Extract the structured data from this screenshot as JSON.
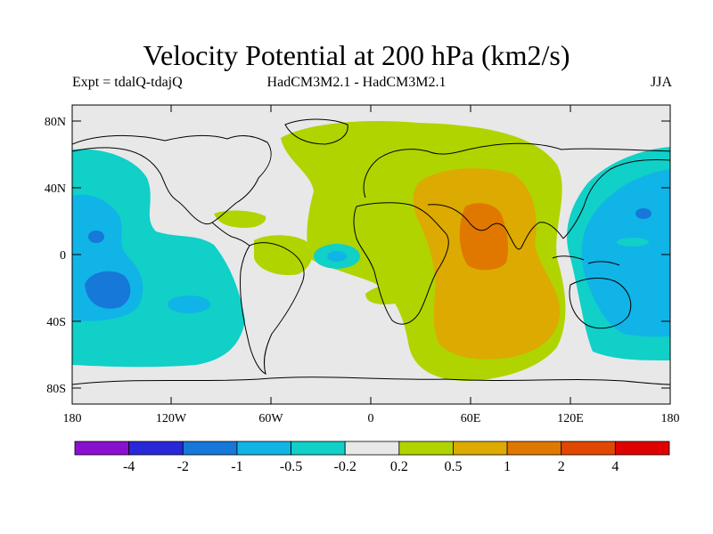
{
  "header": {
    "title": "Velocity Potential at 200 hPa (km2/s)",
    "expt": "Expt = tdalQ-tdajQ",
    "model": "HadCM3M2.1 - HadCM3M2.1",
    "season": "JJA"
  },
  "axes": {
    "lat_ticks": [
      "80N",
      "40N",
      "0",
      "40S",
      "80S"
    ],
    "lon_ticks": [
      "180",
      "120W",
      "60W",
      "0",
      "60E",
      "120E",
      "180"
    ]
  },
  "colorbar": {
    "colors": [
      "#8a10d0",
      "#2828d8",
      "#1678d8",
      "#10b4e6",
      "#10d0c8",
      "#e8e8e8",
      "#b0d400",
      "#dcaa00",
      "#e07800",
      "#e04800",
      "#e00000"
    ],
    "labels": [
      "-4",
      "-2",
      "-1",
      "-0.5",
      "-0.2",
      "0.2",
      "0.5",
      "1",
      "2",
      "4"
    ]
  }
}
